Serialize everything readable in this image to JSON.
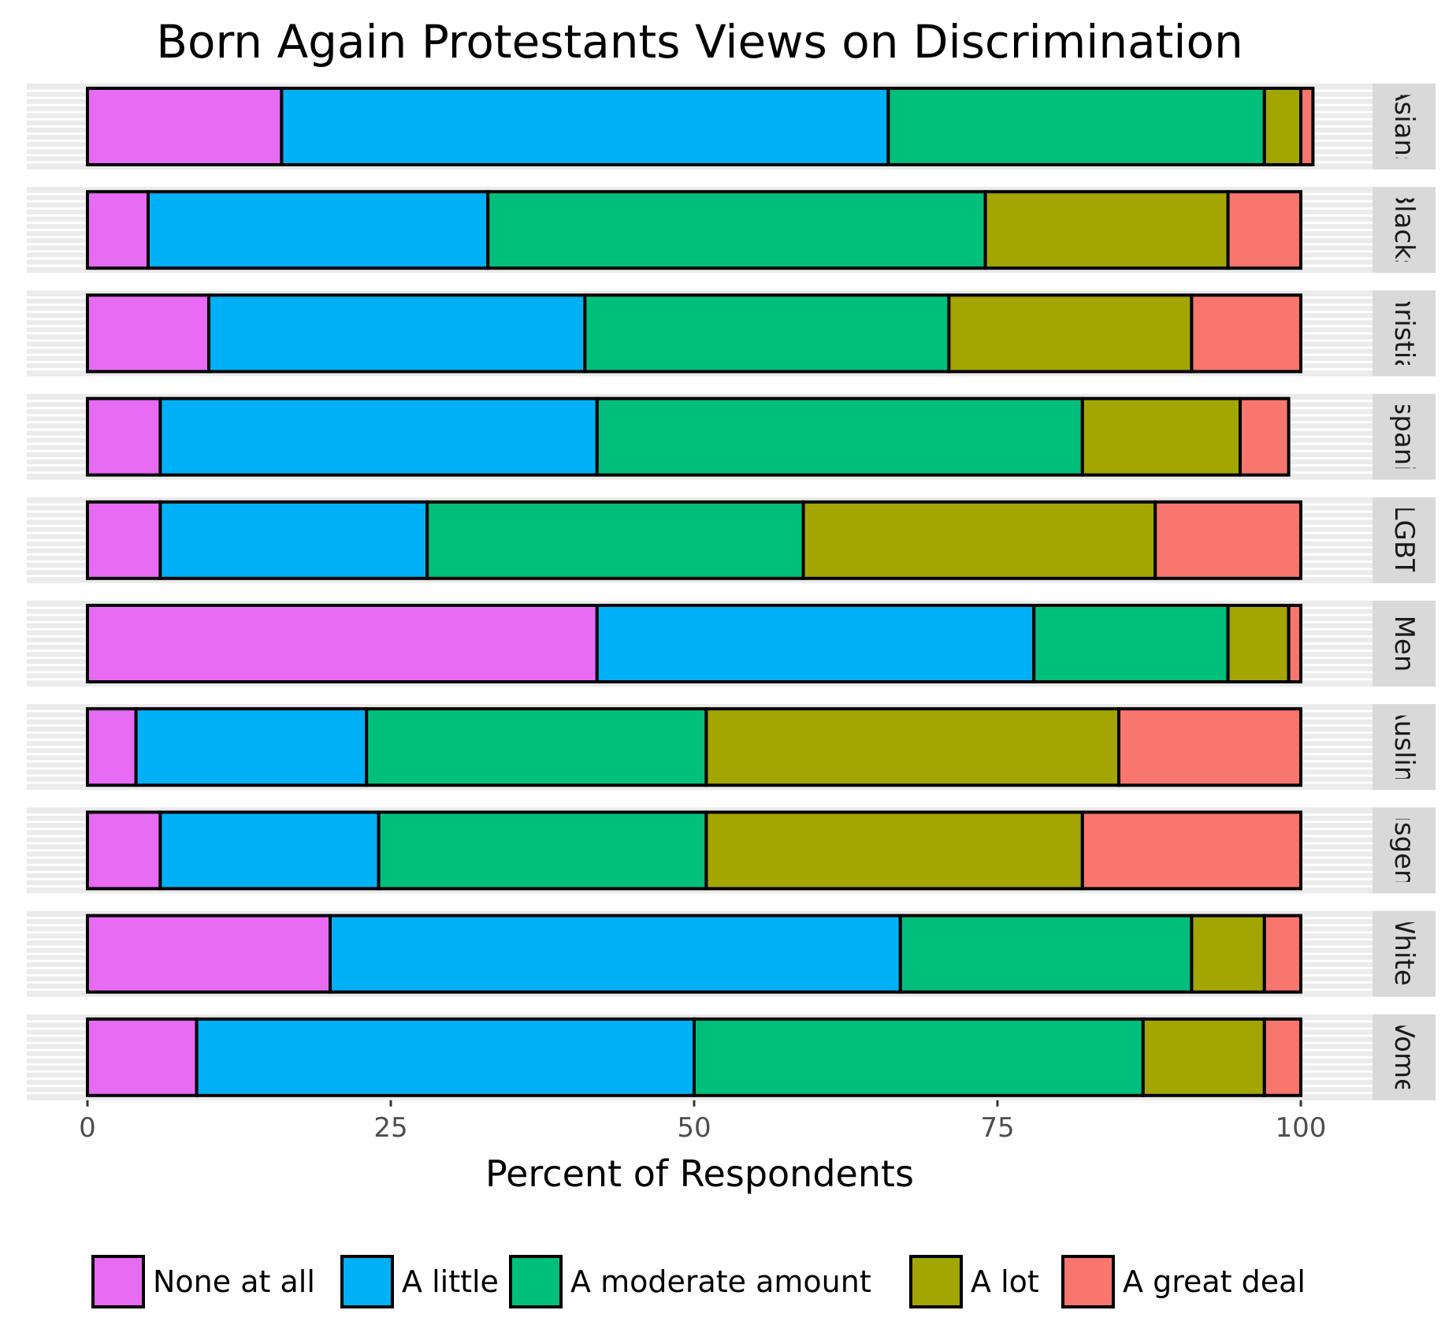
{
  "chart_data": {
    "type": "bar",
    "orientation": "horizontal",
    "stacked": true,
    "title": "Born Again Protestants Views on Discrimination",
    "xlabel": "Percent of Respondents",
    "ylabel": "",
    "xlim": [
      0,
      100
    ],
    "xticks": [
      "0",
      "25",
      "50",
      "75",
      "100"
    ],
    "grid": true,
    "legend_position": "bottom",
    "categories": [
      "Asians",
      "Blacks",
      "Christians",
      "Hispanics",
      "LGBT",
      "Men",
      "Muslims",
      "Transgender",
      "Whites",
      "Women"
    ],
    "strip_labels": [
      "Asians",
      "Blacks",
      "hristia",
      "spani",
      "LGBT",
      "Men",
      "Auslim",
      "ısgen",
      "Whites",
      "Vome"
    ],
    "series": [
      {
        "name": "None at all",
        "color": "#E76BF3",
        "values": [
          16,
          5,
          10,
          6,
          6,
          42,
          4,
          6,
          20,
          9
        ]
      },
      {
        "name": "A little",
        "color": "#00B0F6",
        "values": [
          50,
          28,
          31,
          36,
          22,
          36,
          19,
          18,
          47,
          41
        ]
      },
      {
        "name": "A moderate amount",
        "color": "#00BF7D",
        "values": [
          31,
          41,
          30,
          40,
          31,
          16,
          28,
          27,
          24,
          37
        ]
      },
      {
        "name": "A lot",
        "color": "#A3A500",
        "values": [
          3,
          20,
          20,
          13,
          29,
          5,
          34,
          31,
          6,
          10
        ]
      },
      {
        "name": "A great deal",
        "color": "#F8766D",
        "values": [
          1,
          6,
          9,
          4,
          12,
          1,
          15,
          18,
          3,
          3
        ]
      }
    ]
  }
}
